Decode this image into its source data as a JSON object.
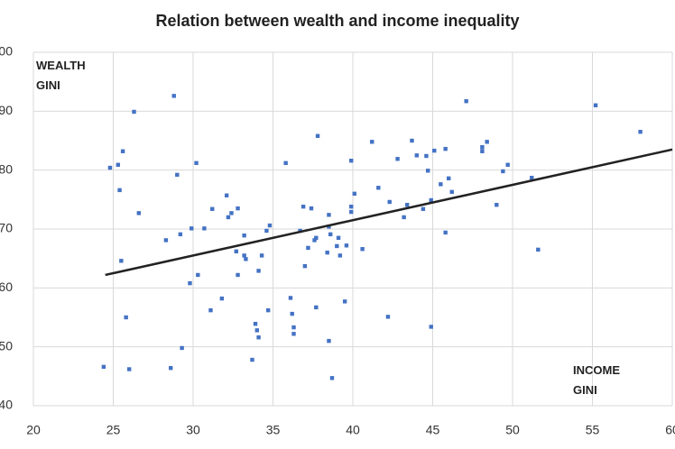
{
  "chart_data": {
    "type": "scatter",
    "title": "Relation between wealth and income inequality",
    "xlabel": "INCOME GINI",
    "ylabel": "WEALTH GINI",
    "xlim": [
      20,
      60
    ],
    "xticks": [
      20,
      25,
      30,
      35,
      40,
      45,
      50,
      55,
      60
    ],
    "ylim": [
      40,
      100
    ],
    "yticks": [
      40,
      50,
      60,
      70,
      80,
      90,
      100
    ],
    "grid": true,
    "color": "#4472c4",
    "trend_color": "#222222",
    "series": [
      {
        "color": "#4472c4",
        "x": [
          24.4,
          24.8,
          25.3,
          25.6,
          25.4,
          26.3,
          26.6,
          25.5,
          25.8,
          26.0,
          28.3,
          28.6,
          28.8,
          29.0,
          29.2,
          29.3,
          29.8,
          29.9,
          30.2,
          30.3,
          30.7,
          31.1,
          31.2,
          31.8,
          32.1,
          32.2,
          32.4,
          32.8,
          32.8,
          32.7,
          33.2,
          33.2,
          33.3,
          33.9,
          34.0,
          34.1,
          33.7,
          34.1,
          34.3,
          34.6,
          34.7,
          34.8,
          35.8,
          36.1,
          36.2,
          36.3,
          36.3,
          36.7,
          36.9,
          37.0,
          37.2,
          37.4,
          37.6,
          37.7,
          37.8,
          37.7,
          38.4,
          38.6,
          38.5,
          38.5,
          38.5,
          38.7,
          39.0,
          39.2,
          39.1,
          39.5,
          39.6,
          39.9,
          39.9,
          39.9,
          40.1,
          40.6,
          41.2,
          41.6,
          42.2,
          42.3,
          42.8,
          43.2,
          43.4,
          43.7,
          44.0,
          44.4,
          44.6,
          44.7,
          44.9,
          44.9,
          45.1,
          45.5,
          45.8,
          45.8,
          46.0,
          46.2,
          47.1,
          48.1,
          48.1,
          48.4,
          49.0,
          49.4,
          49.7,
          51.2,
          51.6,
          55.2,
          58.0
        ],
        "values": [
          46.6,
          80.4,
          80.9,
          83.2,
          76.6,
          89.9,
          72.7,
          64.6,
          55.0,
          46.2,
          68.1,
          46.4,
          92.6,
          79.2,
          69.1,
          49.8,
          60.8,
          70.1,
          81.2,
          62.2,
          70.1,
          56.2,
          73.4,
          58.2,
          75.7,
          72.0,
          72.7,
          73.5,
          62.2,
          66.2,
          68.9,
          65.5,
          64.9,
          53.9,
          52.8,
          51.6,
          47.8,
          62.9,
          65.5,
          69.7,
          56.2,
          70.6,
          81.2,
          58.3,
          55.6,
          53.3,
          52.2,
          69.7,
          73.8,
          63.7,
          66.8,
          73.5,
          68.1,
          68.5,
          85.8,
          56.7,
          66.0,
          69.1,
          70.4,
          72.4,
          51.0,
          44.7,
          67.1,
          65.5,
          68.5,
          57.7,
          67.2,
          81.6,
          73.8,
          72.9,
          76.0,
          66.6,
          84.8,
          77.0,
          55.1,
          74.6,
          81.9,
          72.0,
          74.1,
          85.0,
          82.5,
          73.4,
          82.4,
          79.9,
          53.4,
          74.9,
          83.3,
          77.6,
          69.4,
          83.6,
          78.6,
          76.3,
          91.7,
          83.2,
          83.9,
          84.8,
          74.1,
          79.8,
          80.9,
          78.7,
          66.5,
          91.0,
          86.5
        ]
      }
    ],
    "trendline": {
      "x": [
        24.5,
        60
      ],
      "y": [
        62.2,
        83.5
      ]
    }
  }
}
